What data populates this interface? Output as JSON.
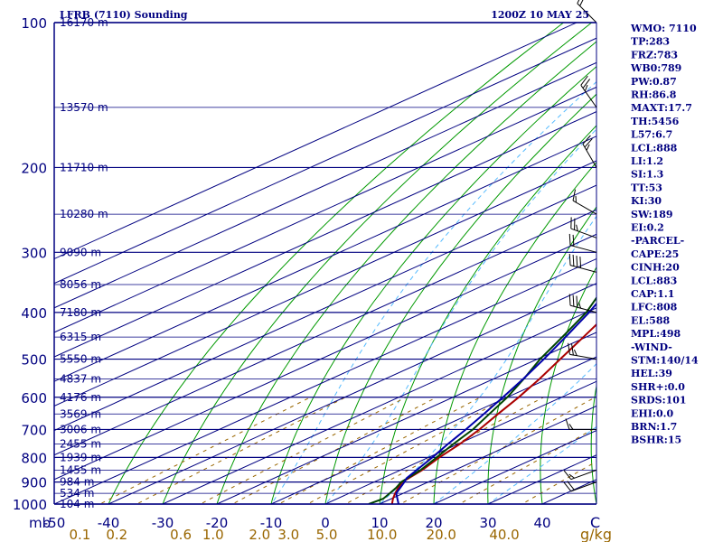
{
  "chart_data": {
    "type": "skew-t log-p sounding",
    "title_left": "LFRB (7110) Sounding",
    "title_right": "1200Z 10 MAY 25",
    "pressure_levels": [
      100,
      200,
      300,
      400,
      500,
      600,
      700,
      800,
      900,
      1000
    ],
    "pressure_unit": "mb",
    "temp_ticks": [
      -50,
      -40,
      -30,
      -20,
      -10,
      0,
      10,
      20,
      30,
      40
    ],
    "temp_unit": "C",
    "mixing_ratio_ticks": [
      "0.1",
      "0.2",
      "0.6",
      "1.0",
      "2.0",
      "3.0",
      "5.0",
      "10.0",
      "20.0",
      "40.0"
    ],
    "mixing_ratio_unit": "g/kg",
    "heights": [
      {
        "p": 100,
        "label": "16170 m"
      },
      {
        "p": 150,
        "label": "13570 m"
      },
      {
        "p": 200,
        "label": "11710 m"
      },
      {
        "p": 250,
        "label": "10280 m"
      },
      {
        "p": 300,
        "label": "9090 m"
      },
      {
        "p": 350,
        "label": "8056 m"
      },
      {
        "p": 400,
        "label": "7180 m"
      },
      {
        "p": 450,
        "label": "6315 m"
      },
      {
        "p": 500,
        "label": "5550 m"
      },
      {
        "p": 550,
        "label": "4837 m"
      },
      {
        "p": 600,
        "label": "4176 m"
      },
      {
        "p": 650,
        "label": "3569 m"
      },
      {
        "p": 700,
        "label": "3006 m"
      },
      {
        "p": 750,
        "label": "2455 m"
      },
      {
        "p": 800,
        "label": "1939 m"
      },
      {
        "p": 850,
        "label": "1455 m"
      },
      {
        "p": 900,
        "label": "984 m"
      },
      {
        "p": 950,
        "label": "534 m"
      },
      {
        "p": 1000,
        "label": "104 m"
      }
    ],
    "series": [
      {
        "name": "temperature",
        "color": "#aa0000",
        "points": [
          [
            1000,
            12.3
          ],
          [
            975,
            10.3
          ],
          [
            950,
            8.5
          ],
          [
            925,
            6.8
          ],
          [
            900,
            5.2
          ],
          [
            850,
            4.0
          ],
          [
            800,
            2.0
          ],
          [
            750,
            0.3
          ],
          [
            700,
            -2.0
          ],
          [
            650,
            -4.9
          ],
          [
            600,
            -7.9
          ],
          [
            550,
            -11.5
          ],
          [
            500,
            -15.8
          ],
          [
            450,
            -20.5
          ],
          [
            400,
            -25.8
          ],
          [
            350,
            -32.0
          ],
          [
            300,
            -40.5
          ],
          [
            280,
            -45.0
          ],
          [
            250,
            -45.6
          ],
          [
            200,
            -44.0
          ],
          [
            150,
            -43.2
          ],
          [
            100,
            -45.6
          ]
        ]
      },
      {
        "name": "dewpoint",
        "color": "#004400",
        "points": [
          [
            1000,
            8.0
          ],
          [
            975,
            8.5
          ],
          [
            950,
            7.5
          ],
          [
            925,
            6.4
          ],
          [
            900,
            5.0
          ],
          [
            850,
            3.7
          ],
          [
            800,
            1.5
          ],
          [
            750,
            -0.9
          ],
          [
            700,
            -3.2
          ],
          [
            650,
            -6.5
          ],
          [
            600,
            -10.0
          ],
          [
            550,
            -14.4
          ],
          [
            500,
            -19.5
          ],
          [
            450,
            -24.4
          ],
          [
            400,
            -30.0
          ],
          [
            350,
            -37.8
          ],
          [
            300,
            -46.5
          ],
          [
            280,
            -48.0
          ],
          [
            250,
            -54.0
          ],
          [
            200,
            -61.0
          ],
          [
            150,
            -74.0
          ],
          [
            100,
            -82.0
          ]
        ]
      },
      {
        "name": "parcel",
        "color": "#0000aa",
        "points": [
          [
            1000,
            13.5
          ],
          [
            950,
            8.7
          ],
          [
            900,
            5.6
          ],
          [
            883,
            4.4
          ],
          [
            850,
            3.0
          ],
          [
            800,
            0.7
          ],
          [
            750,
            -1.9
          ],
          [
            700,
            -4.5
          ],
          [
            650,
            -7.5
          ],
          [
            600,
            -10.8
          ],
          [
            550,
            -14.5
          ],
          [
            500,
            -18.8
          ],
          [
            450,
            -23.8
          ],
          [
            400,
            -29.5
          ],
          [
            350,
            -36.5
          ],
          [
            300,
            -44.5
          ],
          [
            250,
            -53.5
          ],
          [
            200,
            -64.0
          ],
          [
            150,
            -76.0
          ],
          [
            100,
            -92.0
          ]
        ]
      }
    ],
    "wind_barbs": [
      {
        "p": 100,
        "dir": 315,
        "kt": 20
      },
      {
        "p": 150,
        "dir": 325,
        "kt": 25
      },
      {
        "p": 200,
        "dir": 330,
        "kt": 25
      },
      {
        "p": 250,
        "dir": 300,
        "kt": 15
      },
      {
        "p": 280,
        "dir": 290,
        "kt": 25
      },
      {
        "p": 300,
        "dir": 285,
        "kt": 50
      },
      {
        "p": 330,
        "dir": 285,
        "kt": 40
      },
      {
        "p": 400,
        "dir": 285,
        "kt": 35
      },
      {
        "p": 500,
        "dir": 280,
        "kt": 25
      },
      {
        "p": 700,
        "dir": 270,
        "kt": 15
      },
      {
        "p": 850,
        "dir": 250,
        "kt": 15
      },
      {
        "p": 900,
        "dir": 250,
        "kt": 20
      }
    ],
    "indices": [
      "WMO: 7110",
      "TP:283",
      "FRZ:783",
      "WB0:789",
      "PW:0.87",
      "RH:86.8",
      "MAXT:17.7",
      "TH:5456",
      "L57:6.7",
      "LCL:888",
      "LI:1.2",
      "SI:1.3",
      "TT:53",
      "KI:30",
      "SW:189",
      "EI:0.2",
      "-PARCEL-",
      "CAPE:25",
      "CINH:20",
      "LCL:883",
      "CAP:1.1",
      "LFC:808",
      "EL:588",
      "MPL:498",
      "-WIND-",
      "STM:140/14",
      "HEL:39",
      "SHR+:0.0",
      "SRDS:101",
      "EHI:0.0",
      "BRN:1.7",
      "BSHR:15"
    ],
    "colors": {
      "isobar": "#000080",
      "isotherm": "#000080",
      "dry_adiabat": "#009900",
      "moist_adiabat": "#55bbff",
      "mixing_ratio": "#996600",
      "axis": "#000080"
    }
  }
}
